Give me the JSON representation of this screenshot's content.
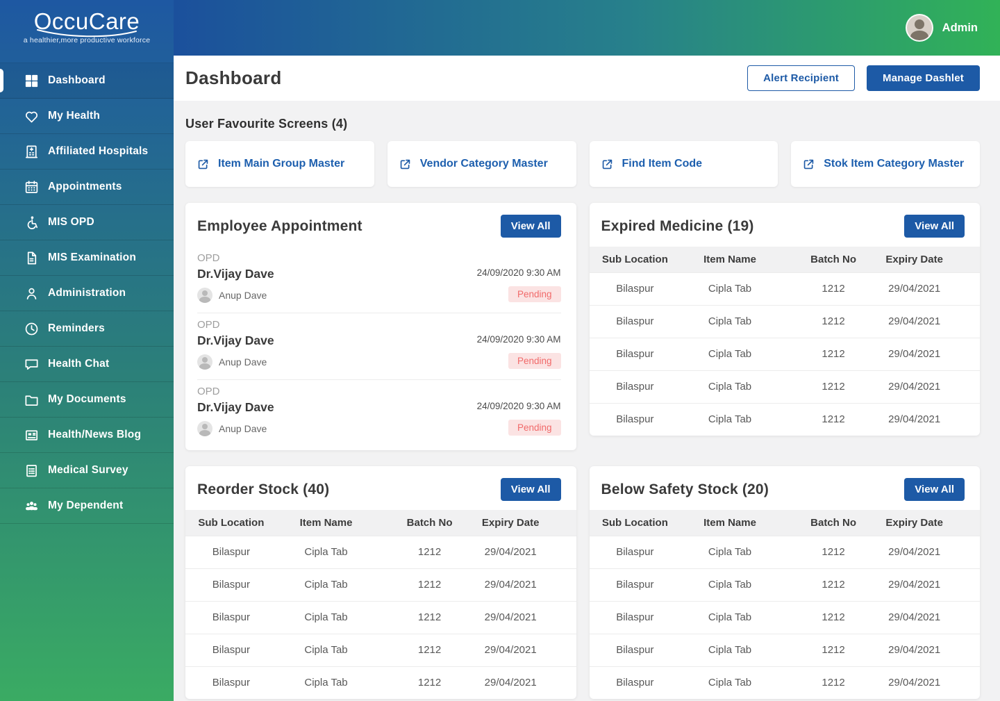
{
  "brand": {
    "name": "OccuCare",
    "tagline": "a healthier,more productive workforce"
  },
  "topbar": {
    "user_label": "Admin",
    "avatar_icon": "admin-avatar-icon"
  },
  "page_header": {
    "title": "Dashboard",
    "alert_recipient_label": "Alert Recipient",
    "manage_dashlet_label": "Manage Dashlet"
  },
  "colors": {
    "accent": "#1d5aa6",
    "sidebar_top": "#1e58a2",
    "sidebar_mid": "#2c8178",
    "sidebar_bottom": "#3aab63",
    "topbar_start": "#1b509c",
    "topbar_mid": "#27808b",
    "topbar_end": "#31b257",
    "pending_bg": "#fbe3e3",
    "pending_text": "#f16a6a"
  },
  "sidebar": {
    "items": [
      {
        "label": "Dashboard",
        "icon": "dashboard-icon",
        "active": true
      },
      {
        "label": "My Health",
        "icon": "heart-icon",
        "active": false
      },
      {
        "label": "Affiliated Hospitals",
        "icon": "hospital-icon",
        "active": false
      },
      {
        "label": "Appointments",
        "icon": "calendar-icon",
        "active": false
      },
      {
        "label": "MIS OPD",
        "icon": "wheelchair-icon",
        "active": false
      },
      {
        "label": "MIS Examination",
        "icon": "document-icon",
        "active": false
      },
      {
        "label": "Administration",
        "icon": "user-icon",
        "active": false
      },
      {
        "label": "Reminders",
        "icon": "clock-icon",
        "active": false
      },
      {
        "label": "Health Chat",
        "icon": "chat-icon",
        "active": false
      },
      {
        "label": "My Documents",
        "icon": "folder-icon",
        "active": false
      },
      {
        "label": "Health/News Blog",
        "icon": "newspaper-icon",
        "active": false
      },
      {
        "label": "Medical Survey",
        "icon": "survey-icon",
        "active": false
      },
      {
        "label": "My Dependent",
        "icon": "users-icon",
        "active": false
      }
    ]
  },
  "favourites": {
    "title": "User Favourite Screens (4)",
    "items": [
      {
        "label": "Item Main Group Master",
        "icon": "external-link-icon"
      },
      {
        "label": "Vendor Category Master",
        "icon": "external-link-icon"
      },
      {
        "label": "Find Item Code",
        "icon": "external-link-icon"
      },
      {
        "label": "Stok Item Category Master",
        "icon": "external-link-icon"
      }
    ]
  },
  "appointment_card": {
    "title": "Employee Appointment",
    "view_all_label": "View All",
    "entries": [
      {
        "type": "OPD",
        "doctor": "Dr.Vijay Dave",
        "datetime": "24/09/2020 9:30 AM",
        "patient": "Anup Dave",
        "status": "Pending"
      },
      {
        "type": "OPD",
        "doctor": "Dr.Vijay Dave",
        "datetime": "24/09/2020 9:30 AM",
        "patient": "Anup Dave",
        "status": "Pending"
      },
      {
        "type": "OPD",
        "doctor": "Dr.Vijay Dave",
        "datetime": "24/09/2020 9:30 AM",
        "patient": "Anup Dave",
        "status": "Pending"
      }
    ]
  },
  "stock_tables": [
    {
      "title": "Expired Medicine (19)",
      "view_all_label": "View All",
      "columns": [
        "Sub Location",
        "Item Name",
        "Batch No",
        "Expiry Date"
      ],
      "rows": [
        [
          "Bilaspur",
          "Cipla Tab",
          "1212",
          "29/04/2021"
        ],
        [
          "Bilaspur",
          "Cipla Tab",
          "1212",
          "29/04/2021"
        ],
        [
          "Bilaspur",
          "Cipla Tab",
          "1212",
          "29/04/2021"
        ],
        [
          "Bilaspur",
          "Cipla Tab",
          "1212",
          "29/04/2021"
        ],
        [
          "Bilaspur",
          "Cipla Tab",
          "1212",
          "29/04/2021"
        ]
      ]
    },
    {
      "title": "Reorder Stock (40)",
      "view_all_label": "View All",
      "columns": [
        "Sub Location",
        "Item Name",
        "Batch No",
        "Expiry Date"
      ],
      "rows": [
        [
          "Bilaspur",
          "Cipla Tab",
          "1212",
          "29/04/2021"
        ],
        [
          "Bilaspur",
          "Cipla Tab",
          "1212",
          "29/04/2021"
        ],
        [
          "Bilaspur",
          "Cipla Tab",
          "1212",
          "29/04/2021"
        ],
        [
          "Bilaspur",
          "Cipla Tab",
          "1212",
          "29/04/2021"
        ],
        [
          "Bilaspur",
          "Cipla Tab",
          "1212",
          "29/04/2021"
        ]
      ]
    },
    {
      "title": "Below Safety Stock (20)",
      "view_all_label": "View All",
      "columns": [
        "Sub Location",
        "Item Name",
        "Batch No",
        "Expiry Date"
      ],
      "rows": [
        [
          "Bilaspur",
          "Cipla Tab",
          "1212",
          "29/04/2021"
        ],
        [
          "Bilaspur",
          "Cipla Tab",
          "1212",
          "29/04/2021"
        ],
        [
          "Bilaspur",
          "Cipla Tab",
          "1212",
          "29/04/2021"
        ],
        [
          "Bilaspur",
          "Cipla Tab",
          "1212",
          "29/04/2021"
        ],
        [
          "Bilaspur",
          "Cipla Tab",
          "1212",
          "29/04/2021"
        ]
      ]
    }
  ]
}
